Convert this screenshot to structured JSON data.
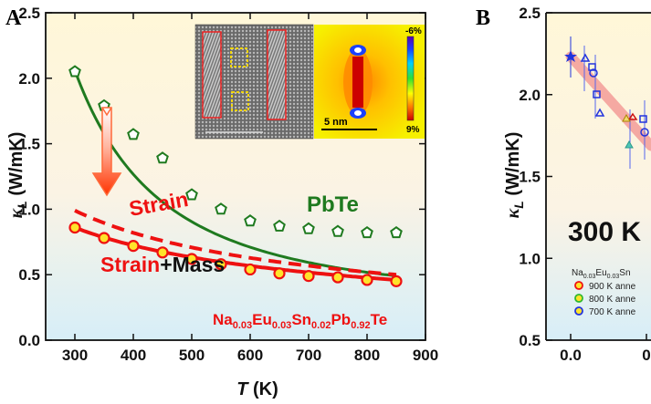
{
  "chart_data": [
    {
      "panel": "A",
      "type": "scatter",
      "xlabel_italic": "T",
      "xlabel_unit": " (K)",
      "ylabel_symbol": "κ",
      "ylabel_sub": "L",
      "ylabel_unit": " (W/mK)",
      "xlim": [
        250,
        900
      ],
      "ylim": [
        0.0,
        2.5
      ],
      "x_ticks": [
        "300",
        "400",
        "500",
        "600",
        "700",
        "800",
        "900"
      ],
      "y_ticks": [
        "0.0",
        "0.5",
        "1.0",
        "1.5",
        "2.0",
        "2.5"
      ],
      "series": [
        {
          "name": "PbTe",
          "marker": "pentagon",
          "color": "#1f7a1f",
          "x": [
            300,
            350,
            400,
            450,
            500,
            550,
            600,
            650,
            700,
            750,
            800,
            850
          ],
          "y": [
            2.05,
            1.79,
            1.57,
            1.39,
            1.11,
            1.0,
            0.91,
            0.87,
            0.85,
            0.83,
            0.82,
            0.82
          ],
          "fit_x": [
            300,
            850
          ],
          "fit_a": 2.06,
          "fit_b": 2.05,
          "fit_c": 0.28
        },
        {
          "name": "Na0.03Eu0.03Sn0.02Pb0.92Te",
          "marker": "circle",
          "color": "#ee1111",
          "fill": "#ffe32a",
          "x": [
            300,
            350,
            400,
            450,
            500,
            550,
            600,
            650,
            700,
            750,
            800,
            850
          ],
          "y": [
            0.86,
            0.78,
            0.72,
            0.67,
            0.62,
            0.58,
            0.54,
            0.51,
            0.49,
            0.48,
            0.46,
            0.45
          ],
          "fit_x": [
            300,
            850
          ],
          "fit_y": [
            0.86,
            0.46
          ]
        },
        {
          "name": "Strain (dashed)",
          "color": "#ee1111",
          "fit_x": [
            300,
            850
          ],
          "fit_y": [
            0.99,
            0.5
          ]
        }
      ],
      "annotations": {
        "strain": "Strain",
        "strain_mass_red": "Strain",
        "strain_mass_black": "+Mass",
        "pbte": "PbTe",
        "formula_parts": [
          "Na",
          "0.03",
          "Eu",
          "0.03",
          "Sn",
          "0.02",
          "Pb",
          "0.92",
          "Te"
        ]
      },
      "inset": {
        "scale_bar": "5 nm",
        "colorbar_top": "-6%",
        "colorbar_bottom": "9%"
      }
    },
    {
      "panel": "B",
      "type": "scatter",
      "ylabel_symbol": "κ",
      "ylabel_sub": "L",
      "ylabel_unit": " (W/mK)",
      "ylim": [
        0.5,
        2.5
      ],
      "y_ticks": [
        "0.5",
        "1.0",
        "1.5",
        "2.0",
        "2.5"
      ],
      "x_ticks_visible": [
        "0.0",
        "0"
      ],
      "big_label": "300 K",
      "legend_title_parts": [
        "Na",
        "0.03",
        "Eu",
        "0.03",
        "Sn"
      ],
      "legend_items": [
        {
          "label": "900 K anne",
          "color": "#ee1111"
        },
        {
          "label": "800 K anne",
          "color": "#2fb82f"
        },
        {
          "label": "700 K anne",
          "color": "#2234dd"
        }
      ]
    }
  ],
  "panel_labels": {
    "a": "A",
    "b": "B"
  }
}
